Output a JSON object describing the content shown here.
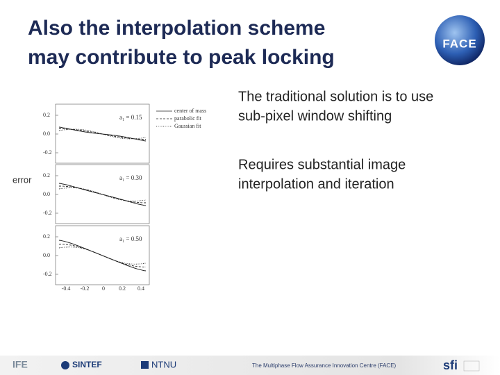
{
  "title": [
    "Also the interpolation scheme",
    "may contribute to peak locking"
  ],
  "logo": "FACE",
  "bullets": [
    [
      "The traditional solution is to use",
      "sub-pixel window shifting"
    ],
    [
      "Requires substantial image",
      "interpolation and iteration"
    ]
  ],
  "figure": {
    "y_label": "error",
    "legend": [
      "center of mass",
      "parabolic fit",
      "Gaussian fit"
    ],
    "panels": [
      {
        "annotation": "a₁ = 0.15",
        "yticks": [
          "0.2",
          "0.0",
          "-0.2"
        ]
      },
      {
        "annotation": "a₁ = 0.30",
        "yticks": [
          "0.2",
          "0.0",
          "-0.2"
        ]
      },
      {
        "annotation": "a₁ = 0.50",
        "yticks": [
          "0.2",
          "0.0",
          "-0.2"
        ]
      }
    ],
    "xticks": [
      "-0.4",
      "-0.2",
      "0",
      "0.2",
      "0.4"
    ]
  },
  "footer": {
    "logos": [
      "IFE",
      "SINTEF",
      "NTNU",
      "sfi"
    ],
    "centre": "The Multiphase Flow Assurance Innovation Centre (FACE)"
  }
}
